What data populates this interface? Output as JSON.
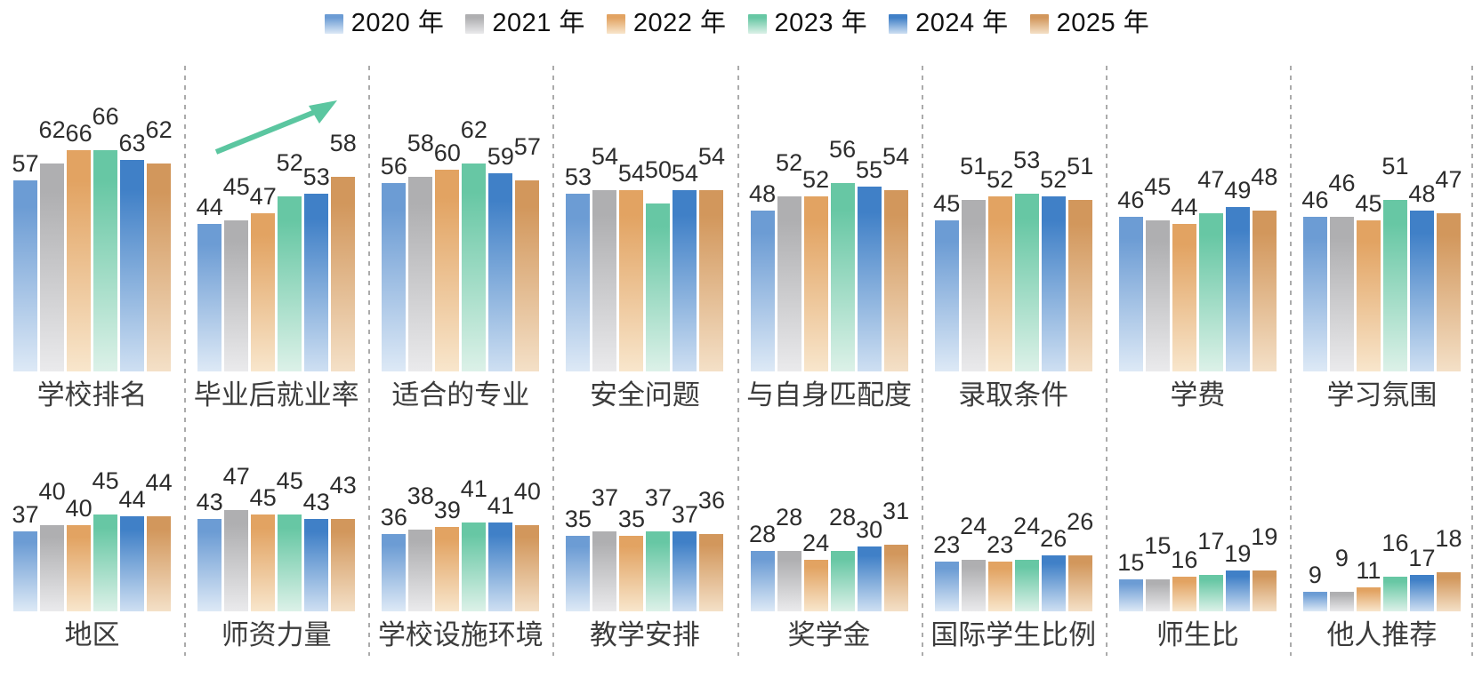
{
  "legend": {
    "items": [
      {
        "label": "2020 年",
        "color_top": "#6C9CD4",
        "color_bottom": "#DDE9F6"
      },
      {
        "label": "2021 年",
        "color_top": "#AFAFB1",
        "color_bottom": "#EAEAEC"
      },
      {
        "label": "2022 年",
        "color_top": "#E2A362",
        "color_bottom": "#F8E6CC"
      },
      {
        "label": "2023 年",
        "color_top": "#67C7A4",
        "color_bottom": "#DCF1E8"
      },
      {
        "label": "2024 年",
        "color_top": "#4080C7",
        "color_bottom": "#CEDFF2"
      },
      {
        "label": "2025 年",
        "color_top": "#D2975C",
        "color_bottom": "#F4E0C7"
      }
    ]
  },
  "chart_data": {
    "type": "bar",
    "title": "",
    "xlabel": "",
    "ylabel": "",
    "ylim": [
      0,
      70
    ],
    "grid": false,
    "legend_position": "top-center",
    "series_names": [
      "2020 年",
      "2021 年",
      "2022 年",
      "2023 年",
      "2024 年",
      "2025 年"
    ],
    "rows": [
      {
        "groups": [
          {
            "label": "学校排名",
            "values": [
              57,
              62,
              66,
              66,
              63,
              62
            ]
          },
          {
            "label": "毕业后就业率",
            "values": [
              44,
              45,
              47,
              52,
              53,
              58
            ]
          },
          {
            "label": "适合的专业",
            "values": [
              56,
              58,
              60,
              62,
              59,
              57
            ]
          },
          {
            "label": "安全问题",
            "values": [
              53,
              54,
              54,
              50,
              54,
              54
            ]
          },
          {
            "label": "与自身匹配度",
            "values": [
              48,
              52,
              52,
              56,
              55,
              54
            ]
          },
          {
            "label": "录取条件",
            "values": [
              45,
              51,
              52,
              53,
              52,
              51
            ]
          },
          {
            "label": "学费",
            "values": [
              46,
              45,
              44,
              47,
              49,
              48
            ]
          },
          {
            "label": "学习氛围",
            "values": [
              46,
              46,
              45,
              51,
              48,
              47
            ]
          }
        ]
      },
      {
        "groups": [
          {
            "label": "地区",
            "values": [
              37,
              40,
              40,
              45,
              44,
              44
            ]
          },
          {
            "label": "师资力量",
            "values": [
              43,
              47,
              45,
              45,
              43,
              43
            ]
          },
          {
            "label": "学校设施环境",
            "values": [
              36,
              38,
              39,
              41,
              41,
              40
            ]
          },
          {
            "label": "教学安排",
            "values": [
              35,
              37,
              35,
              37,
              37,
              36
            ]
          },
          {
            "label": "奖学金",
            "values": [
              28,
              28,
              24,
              28,
              30,
              31
            ]
          },
          {
            "label": "国际学生比例",
            "values": [
              23,
              24,
              23,
              24,
              26,
              26
            ]
          },
          {
            "label": "师生比",
            "values": [
              15,
              15,
              16,
              17,
              19,
              19
            ]
          },
          {
            "label": "他人推荐",
            "values": [
              9,
              9,
              11,
              16,
              17,
              18
            ]
          }
        ]
      }
    ],
    "annotations": [
      {
        "type": "trend-arrow-up",
        "group": "毕业后就业率",
        "color": "#5BC6A0"
      }
    ]
  }
}
